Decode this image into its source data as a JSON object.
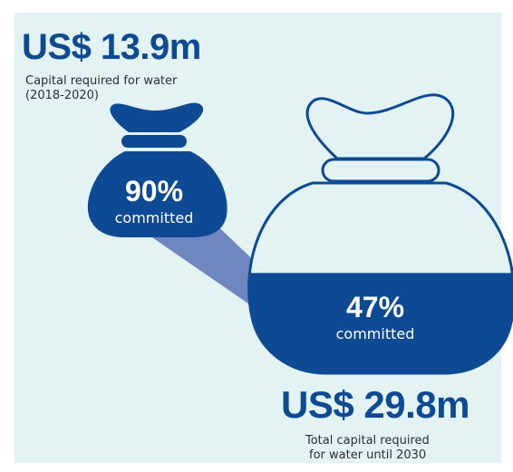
{
  "top": {
    "amount": "US$ 13.9m",
    "label_line1": "Capital required for water",
    "label_line2": "(2018-2020)"
  },
  "bottom": {
    "amount": "US$ 29.8m",
    "label_line1": "Total capital required",
    "label_line2": "for water until 2030"
  },
  "chart_data": {
    "type": "pie",
    "title": "",
    "items": [
      {
        "amount": "US$ 13.9m",
        "label": "Capital required for water (2018-2020)",
        "committed_percent": 90,
        "committed_text": "90%",
        "committed_label": "committed"
      },
      {
        "amount": "US$ 29.8m",
        "label": "Total capital required for water until 2030",
        "committed_percent": 47,
        "committed_text": "47%",
        "committed_label": "committed"
      }
    ]
  },
  "colors": {
    "background": "#e3f2f3",
    "primary": "#0d4a93",
    "connector": "#6f86c0",
    "text": "#2b2f36"
  },
  "icons": [
    "money-bag-icon"
  ]
}
